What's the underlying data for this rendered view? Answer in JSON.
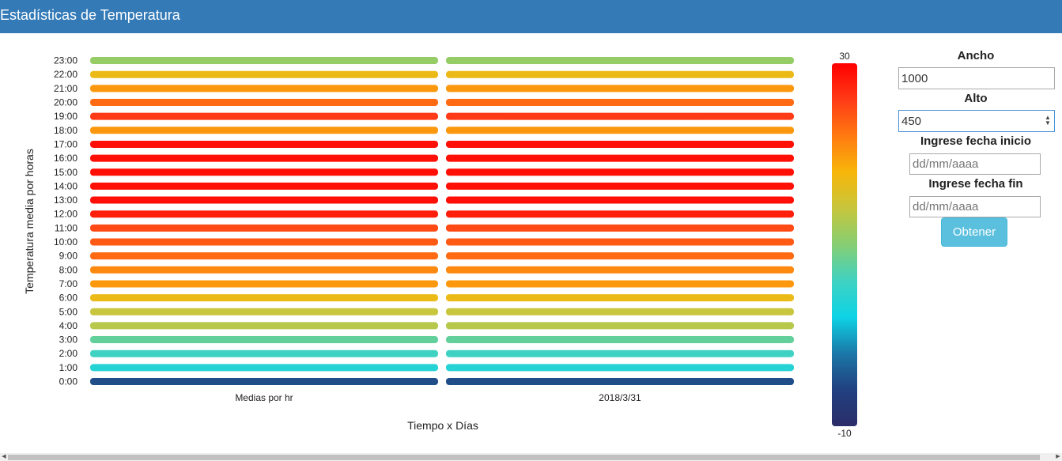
{
  "header": {
    "title": "Estadísticas de Temperatura"
  },
  "chart_data": {
    "type": "heatmap",
    "xlabel": "Tiempo x Días",
    "ylabel": "Temperatura media por horas",
    "categories": [
      "Medias por hr",
      "2018/3/31"
    ],
    "hours": [
      "0:00",
      "1:00",
      "2:00",
      "3:00",
      "4:00",
      "5:00",
      "6:00",
      "7:00",
      "8:00",
      "9:00",
      "10:00",
      "11:00",
      "12:00",
      "13:00",
      "14:00",
      "15:00",
      "16:00",
      "17:00",
      "18:00",
      "19:00",
      "20:00",
      "21:00",
      "22:00",
      "23:00"
    ],
    "values": [
      [
        -5,
        -5
      ],
      [
        4,
        4
      ],
      [
        6,
        6
      ],
      [
        8,
        8
      ],
      [
        13,
        13
      ],
      [
        14,
        14
      ],
      [
        17,
        17
      ],
      [
        20,
        20
      ],
      [
        21,
        21
      ],
      [
        23,
        23
      ],
      [
        24,
        24
      ],
      [
        25,
        25
      ],
      [
        28,
        28
      ],
      [
        29,
        29
      ],
      [
        29,
        29
      ],
      [
        29,
        29
      ],
      [
        29,
        29
      ],
      [
        29,
        29
      ],
      [
        20,
        20
      ],
      [
        26,
        26
      ],
      [
        23,
        23
      ],
      [
        20,
        20
      ],
      [
        17,
        17
      ],
      [
        11,
        11
      ]
    ],
    "color_scale": {
      "min": -10,
      "max": 30,
      "min_label": "-10",
      "max_label": "30",
      "stops": [
        "#2b2d6a",
        "#21407f",
        "#1b77a7",
        "#0dd3e6",
        "#3fd2c2",
        "#86ce73",
        "#c7c63d",
        "#f8b60a",
        "#ff7a10",
        "#ff3a16",
        "#ff0000"
      ]
    }
  },
  "controls": {
    "width_label": "Ancho",
    "width_value": "1000",
    "height_label": "Alto",
    "height_value": "450",
    "start_label": "Ingrese fecha inicio",
    "start_placeholder": "dd/mm/aaaa",
    "end_label": "Ingrese fecha fin",
    "end_placeholder": "dd/mm/aaaa",
    "submit_label": "Obtener"
  }
}
